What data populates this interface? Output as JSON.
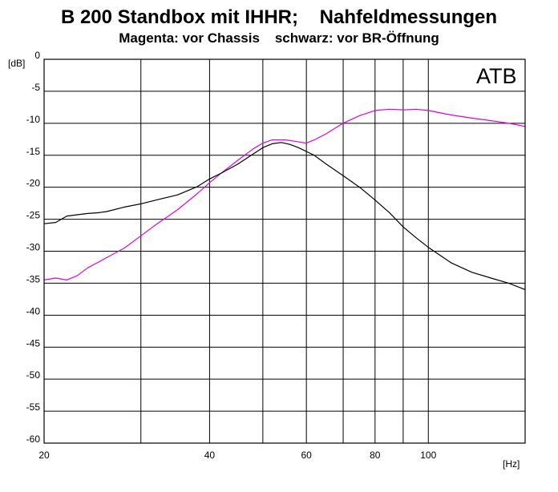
{
  "chart_data": {
    "type": "line",
    "title": "B 200 Standbox mit IHHR;    Nahfeldmessungen",
    "subtitle": "Magenta: vor Chassis    schwarz: vor BR-Öffnung",
    "xlabel": "[Hz]",
    "ylabel": "[dB]",
    "watermark": "ATB",
    "xscale": "log",
    "xlim": [
      20,
      150
    ],
    "ylim": [
      -60,
      0
    ],
    "grid": true,
    "x_tick_values": [
      20,
      30,
      40,
      50,
      60,
      70,
      80,
      90,
      100,
      150
    ],
    "x_tick_labels": [
      "20",
      "",
      "40",
      "",
      "60",
      "",
      "80",
      "",
      "100",
      ""
    ],
    "y_tick_values": [
      0,
      -5,
      -10,
      -15,
      -20,
      -25,
      -30,
      -35,
      -40,
      -45,
      -50,
      -55,
      -60
    ],
    "y_tick_labels": [
      "0",
      "-5",
      "-10",
      "-15",
      "-20",
      "-25",
      "-30",
      "-35",
      "-40",
      "-45",
      "-50",
      "-55",
      "-60"
    ],
    "series": [
      {
        "color": "#e000e0",
        "x": [
          20,
          21,
          22,
          23,
          24,
          25,
          26,
          28,
          30,
          32,
          35,
          38,
          40,
          42,
          45,
          48,
          50,
          52,
          55,
          57,
          60,
          62,
          65,
          70,
          75,
          80,
          85,
          90,
          95,
          100,
          110,
          120,
          130,
          140,
          150
        ],
        "y": [
          -34.5,
          -34.2,
          -34.5,
          -33.8,
          -32.6,
          -31.8,
          -31.0,
          -29.5,
          -27.6,
          -25.8,
          -23.5,
          -21.0,
          -19.3,
          -17.8,
          -15.8,
          -14.0,
          -13.1,
          -12.6,
          -12.6,
          -12.8,
          -13.1,
          -12.6,
          -11.7,
          -10.0,
          -8.8,
          -8.0,
          -7.8,
          -7.9,
          -7.8,
          -8.0,
          -8.7,
          -9.2,
          -9.6,
          -10.0,
          -10.5
        ]
      },
      {
        "color": "#000000",
        "x": [
          20,
          21,
          22,
          23,
          24,
          25,
          26,
          28,
          30,
          32,
          35,
          38,
          40,
          42,
          45,
          48,
          50,
          52,
          54,
          56,
          58,
          60,
          62,
          65,
          70,
          75,
          80,
          85,
          90,
          95,
          100,
          110,
          120,
          130,
          140,
          150
        ],
        "y": [
          -25.7,
          -25.5,
          -24.5,
          -24.3,
          -24.1,
          -24.0,
          -23.8,
          -23.1,
          -22.6,
          -22.0,
          -21.2,
          -19.9,
          -18.7,
          -17.8,
          -16.4,
          -14.8,
          -13.8,
          -13.2,
          -13.0,
          -13.3,
          -13.8,
          -14.4,
          -15.0,
          -16.3,
          -18.2,
          -20.0,
          -22.0,
          -24.0,
          -26.2,
          -27.9,
          -29.4,
          -31.8,
          -33.3,
          -34.2,
          -35.0,
          -36.0
        ]
      }
    ]
  }
}
